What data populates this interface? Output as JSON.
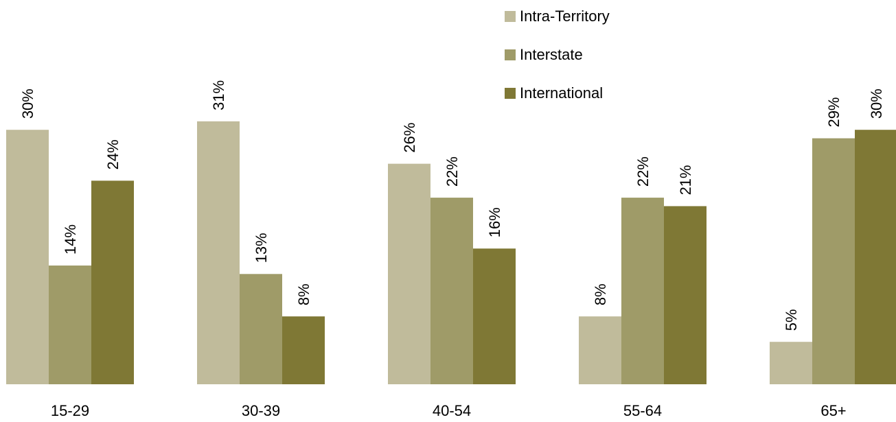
{
  "chart_data": {
    "type": "bar",
    "categories": [
      "15-29",
      "30-39",
      "40-54",
      "55-64",
      "65+"
    ],
    "series": [
      {
        "name": "Intra-Territory",
        "color": "#c0bb9b",
        "values": [
          30,
          31,
          26,
          8,
          5
        ]
      },
      {
        "name": "Interstate",
        "color": "#9f9b68",
        "values": [
          14,
          13,
          22,
          22,
          29
        ]
      },
      {
        "name": "International",
        "color": "#7f7835",
        "values": [
          24,
          8,
          16,
          21,
          30
        ]
      }
    ],
    "value_labels": [
      [
        "30%",
        "31%",
        "26%",
        "8%",
        "5%"
      ],
      [
        "14%",
        "13%",
        "22%",
        "22%",
        "29%"
      ],
      [
        "24%",
        "8%",
        "16%",
        "21%",
        "30%"
      ]
    ],
    "ylim": [
      0,
      30.5
    ],
    "legend_position": "top-right",
    "grid": false,
    "axes_visible": false
  }
}
